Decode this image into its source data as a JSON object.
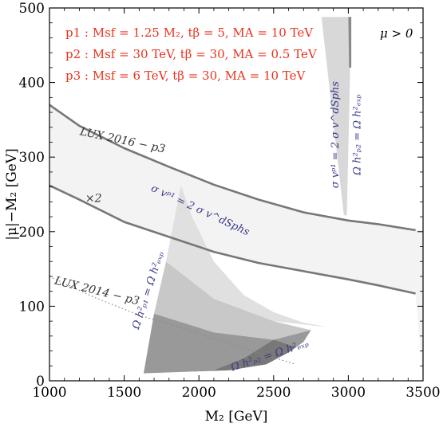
{
  "chart_data": {
    "type": "line",
    "xlabel": "M₂ [GeV]",
    "ylabel": "|μ|−M₂ [GeV]",
    "xlim": [
      1000,
      3500
    ],
    "ylim": [
      0,
      500
    ],
    "xticks": [
      1000,
      1500,
      2000,
      2500,
      3000,
      3500
    ],
    "yticks": [
      0,
      100,
      200,
      300,
      400,
      500
    ],
    "legend_lines": [
      "p1 : Msf = 1.25 M₂, tβ = 5, MA = 10 TeV",
      "p2 : Msf = 30 TeV, tβ = 30, MA = 0.5 TeV",
      "p3 : Msf = 6 TeV, tβ = 30, MA = 10 TeV"
    ],
    "corner_label": "μ > 0",
    "curves": [
      {
        "name": "LUX 2016 − p3",
        "style": "solid",
        "x": [
          1000,
          1200,
          1500,
          1800,
          2100,
          2400,
          2700,
          3000,
          3200,
          3450
        ],
        "y": [
          370,
          342,
          312,
          287,
          263,
          243,
          226,
          215,
          210,
          202
        ]
      },
      {
        "name": "×2",
        "style": "solid",
        "x": [
          1000,
          1200,
          1500,
          1800,
          2100,
          2400,
          2700,
          3000,
          3200,
          3450
        ],
        "y": [
          262,
          243,
          213,
          193,
          173,
          158,
          147,
          136,
          128,
          117
        ]
      },
      {
        "name": "LUX 2014 − p3",
        "style": "dotted",
        "x": [
          1000,
          1300,
          1600,
          1900,
          2200,
          2500,
          2650
        ],
        "y": [
          140,
          112,
          88,
          70,
          50,
          31,
          22
        ]
      }
    ],
    "regions": [
      {
        "name": "band-region",
        "fill": "#f3f3f3",
        "x": [
          1000,
          1200,
          1500,
          1800,
          2100,
          2400,
          2700,
          3000,
          3200,
          3500,
          3500,
          3450,
          3200,
          3000,
          2700,
          2400,
          2100,
          1800,
          1500,
          1200,
          1000
        ],
        "y": [
          370,
          342,
          312,
          287,
          263,
          243,
          226,
          215,
          210,
          202,
          0,
          117,
          128,
          136,
          147,
          158,
          173,
          193,
          213,
          243,
          262
        ]
      },
      {
        "name": "p1-light-region",
        "fill": "#e0e0e0",
        "x": [
          1880,
          1950,
          2100,
          2300,
          2500,
          2700,
          2860,
          2500,
          2100,
          1780
        ],
        "y": [
          262,
          222,
          160,
          115,
          92,
          78,
          72,
          80,
          110,
          160
        ]
      },
      {
        "name": "p1-mid-region",
        "fill": "#c8c8c8",
        "x": [
          1780,
          2100,
          2500,
          2750,
          2500,
          2100,
          1700
        ],
        "y": [
          160,
          110,
          80,
          68,
          55,
          65,
          90
        ]
      },
      {
        "name": "p1-dark-region",
        "fill": "#999999",
        "x": [
          1700,
          2100,
          2500,
          2750,
          2700,
          2600,
          2450,
          2100,
          1900,
          1630
        ],
        "y": [
          90,
          65,
          55,
          68,
          52,
          38,
          22,
          14,
          12,
          10
        ]
      },
      {
        "name": "p1-darker-region",
        "fill": "#787878",
        "x": [
          1630,
          1900,
          2100,
          2300,
          2500,
          2650,
          2600,
          2450,
          2200,
          1900
        ],
        "y": [
          10,
          12,
          14,
          30,
          55,
          45,
          38,
          22,
          14,
          12
        ]
      },
      {
        "name": "p2-light-strip",
        "fill": "#d8d8d8",
        "x": [
          2820,
          3020,
          2990,
          2970
        ],
        "y": [
          488,
          488,
          222,
          222
        ]
      },
      {
        "name": "p2-dark-strip",
        "fill": "#8a8a8a",
        "x": [
          3000,
          3020,
          3020,
          3005
        ],
        "y": [
          488,
          488,
          420,
          420
        ]
      }
    ],
    "region_labels": [
      {
        "text": "σ vᵖ¹ = 2 σ v^dSphs",
        "x": 2000,
        "y": 225,
        "rotate": 25
      },
      {
        "text": "Ω h²ₚ₁ = Ω h²ₑₓₚ",
        "x": 1680,
        "y": 120,
        "rotate": -72
      },
      {
        "text": "Ω h²ₚ₂ = Ω h²ₑₓₚ",
        "x": 2480,
        "y": 30,
        "rotate": -18
      },
      {
        "text": "σ vᵖ¹ = 2 σ v^dSphs",
        "x": 2935,
        "y": 330,
        "rotate": -90
      },
      {
        "text": "Ω h²ₚ₂ = Ω h²ₑₓₚ",
        "x": 3080,
        "y": 330,
        "rotate": -90
      }
    ],
    "curve_labels": [
      {
        "text": "LUX 2016 − p3",
        "x": 1200,
        "y": 330,
        "rotate": 12
      },
      {
        "text": "×2",
        "x": 1240,
        "y": 240,
        "rotate": 0
      },
      {
        "text": "LUX 2014 − p3",
        "x": 1030,
        "y": 130,
        "rotate": 14
      }
    ],
    "grid": false,
    "legend_position": "top-left"
  }
}
